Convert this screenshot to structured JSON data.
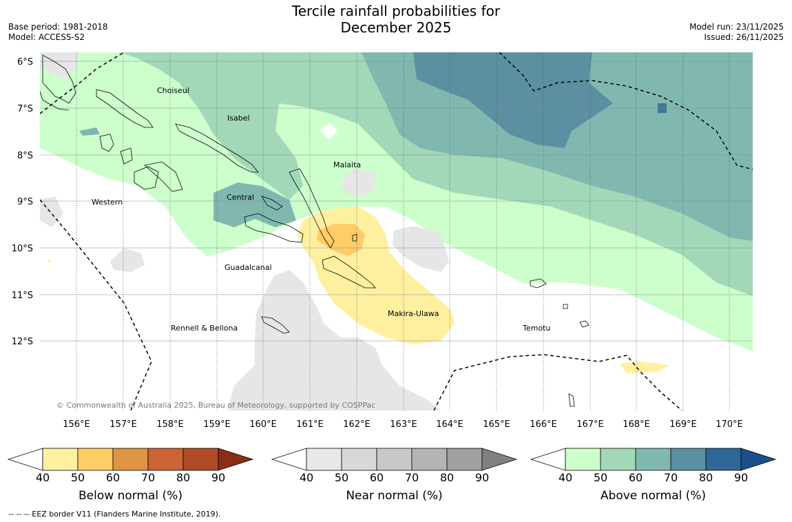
{
  "title": {
    "line1": "Tercile rainfall probabilities for",
    "line2": "December 2025"
  },
  "meta": {
    "base_period": "Base period: 1981-2018",
    "model": "Model: ACCESS-S2",
    "model_run": "Model run: 23/11/2025",
    "issued": "Issued: 26/11/2025"
  },
  "map": {
    "lat_labels": [
      "6°S",
      "7°S",
      "8°S",
      "9°S",
      "10°S",
      "11°S",
      "12°S"
    ],
    "lon_labels": [
      "156°E",
      "157°E",
      "158°E",
      "159°E",
      "160°E",
      "161°E",
      "162°E",
      "163°E",
      "164°E",
      "165°E",
      "166°E",
      "167°E",
      "168°E",
      "169°E",
      "170°E"
    ],
    "provinces": [
      "Choiseul",
      "Isabel",
      "Malaita",
      "Western",
      "Central",
      "Guadalcanal",
      "Makira-Ulawa",
      "Rennell & Bellona",
      "Temotu"
    ],
    "copyright": "© Commonwealth of Australia 2025, Bureau of Meteorology, supported by COSPPac"
  },
  "colorbars": [
    {
      "label": "Below normal (%)",
      "ticks": [
        "40",
        "50",
        "60",
        "70",
        "80",
        "90"
      ],
      "colors": [
        "#ffffff",
        "#fff0a0",
        "#ffcc66",
        "#e09545",
        "#cd6433",
        "#b04a27",
        "#8a2e14"
      ]
    },
    {
      "label": "Near normal (%)",
      "ticks": [
        "40",
        "50",
        "60",
        "70",
        "80",
        "90"
      ],
      "colors": [
        "#ffffff",
        "#e8e8e8",
        "#d8d8d8",
        "#c8c8c8",
        "#b4b4b4",
        "#a0a0a0",
        "#808080"
      ]
    },
    {
      "label": "Above normal (%)",
      "ticks": [
        "40",
        "50",
        "60",
        "70",
        "80",
        "90"
      ],
      "colors": [
        "#ffffff",
        "#ccffcc",
        "#a2d8b8",
        "#80b8b0",
        "#5a90a0",
        "#2f6898",
        "#1a4f8a"
      ]
    }
  ],
  "footer": "--  --  -- EEZ border V11 (Flanders Marine Institute, 2019)."
}
